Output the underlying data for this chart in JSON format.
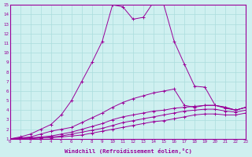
{
  "xlabel": "Windchill (Refroidissement éolien,°C)",
  "bg_color": "#cff0f0",
  "line_color": "#990099",
  "grid_color": "#aadddd",
  "xlim": [
    0,
    23
  ],
  "ylim": [
    1,
    15
  ],
  "xticks": [
    0,
    1,
    2,
    3,
    4,
    5,
    6,
    7,
    8,
    9,
    10,
    11,
    12,
    13,
    14,
    15,
    16,
    17,
    18,
    19,
    20,
    21,
    22,
    23
  ],
  "yticks": [
    1,
    2,
    3,
    4,
    5,
    6,
    7,
    8,
    9,
    10,
    11,
    12,
    13,
    14,
    15
  ],
  "lines": [
    [
      0,
      1,
      1,
      1.2,
      2,
      1.5,
      3,
      2.0,
      4,
      2.5,
      5,
      3.5,
      6,
      5.0,
      7,
      7.0,
      8,
      9.0,
      9,
      11.2,
      10,
      15.0,
      11,
      14.8,
      12,
      13.5,
      13,
      13.7,
      14,
      15.3,
      15,
      15.0,
      16,
      11.2,
      17,
      8.8,
      18,
      6.5,
      19,
      6.4,
      20,
      4.5,
      21,
      4.2,
      22,
      4.0,
      23,
      4.3
    ],
    [
      0,
      1,
      1,
      1.1,
      2,
      1.2,
      3,
      1.5,
      4,
      1.8,
      5,
      2.0,
      6,
      2.2,
      7,
      2.7,
      8,
      3.2,
      9,
      3.7,
      10,
      4.3,
      11,
      4.8,
      12,
      5.2,
      13,
      5.5,
      14,
      5.8,
      15,
      6.0,
      16,
      6.2,
      17,
      4.5,
      18,
      4.3,
      19,
      4.5,
      20,
      4.5,
      21,
      4.3,
      22,
      4.0,
      23,
      4.3
    ],
    [
      0,
      1,
      1,
      1.1,
      2,
      1.1,
      3,
      1.2,
      4,
      1.3,
      5,
      1.5,
      6,
      1.7,
      7,
      2.0,
      8,
      2.3,
      9,
      2.6,
      10,
      3.0,
      11,
      3.3,
      12,
      3.5,
      13,
      3.7,
      14,
      3.9,
      15,
      4.0,
      16,
      4.2,
      17,
      4.3,
      18,
      4.4,
      19,
      4.5,
      20,
      4.5,
      21,
      4.3,
      22,
      4.0,
      23,
      4.3
    ],
    [
      0,
      1,
      1,
      1.0,
      2,
      1.1,
      3,
      1.1,
      4,
      1.2,
      5,
      1.3,
      6,
      1.5,
      7,
      1.7,
      8,
      1.9,
      9,
      2.1,
      10,
      2.4,
      11,
      2.7,
      12,
      2.9,
      13,
      3.1,
      14,
      3.3,
      15,
      3.5,
      16,
      3.7,
      17,
      3.9,
      18,
      4.0,
      19,
      4.1,
      20,
      4.1,
      21,
      3.9,
      22,
      3.8,
      23,
      4.0
    ],
    [
      0,
      1,
      1,
      1.0,
      2,
      1.0,
      3,
      1.1,
      4,
      1.1,
      5,
      1.2,
      6,
      1.3,
      7,
      1.4,
      8,
      1.6,
      9,
      1.8,
      10,
      2.0,
      11,
      2.2,
      12,
      2.4,
      13,
      2.6,
      14,
      2.8,
      15,
      2.9,
      16,
      3.1,
      17,
      3.3,
      18,
      3.5,
      19,
      3.6,
      20,
      3.6,
      21,
      3.5,
      22,
      3.5,
      23,
      3.7
    ]
  ]
}
